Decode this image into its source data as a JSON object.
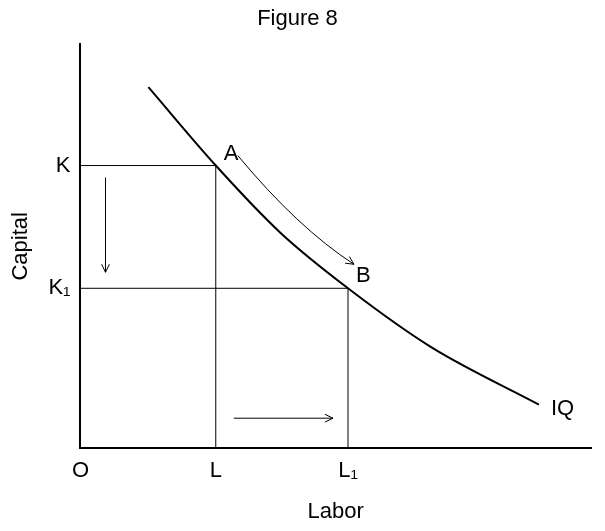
{
  "chart_data": {
    "type": "line",
    "title": "Figure 8",
    "x_label": "Labor",
    "y_label": "Capital",
    "x": [
      1.33,
      2.65,
      3.92,
      5.24,
      6.86,
      8.98
    ],
    "series": [
      {
        "name": "IQ",
        "color": "#000000",
        "values": [
          8.94,
          7.0,
          5.33,
          3.96,
          2.51,
          1.08
        ]
      }
    ],
    "xlim": [
      0,
      10
    ],
    "ylim": [
      0,
      10
    ],
    "xticks": [
      {
        "value": 0,
        "label": "O"
      },
      {
        "value": 2.65,
        "label": "L"
      },
      {
        "value": 5.24,
        "label": "L₁"
      }
    ],
    "yticks": [
      {
        "value": 7.0,
        "label": "K"
      },
      {
        "value": 3.96,
        "label": "K₁"
      }
    ],
    "grid": false,
    "annotations": [
      {
        "label": "A",
        "x": 2.65,
        "y": 7.0
      },
      {
        "label": "B",
        "x": 5.24,
        "y": 3.96
      }
    ]
  }
}
